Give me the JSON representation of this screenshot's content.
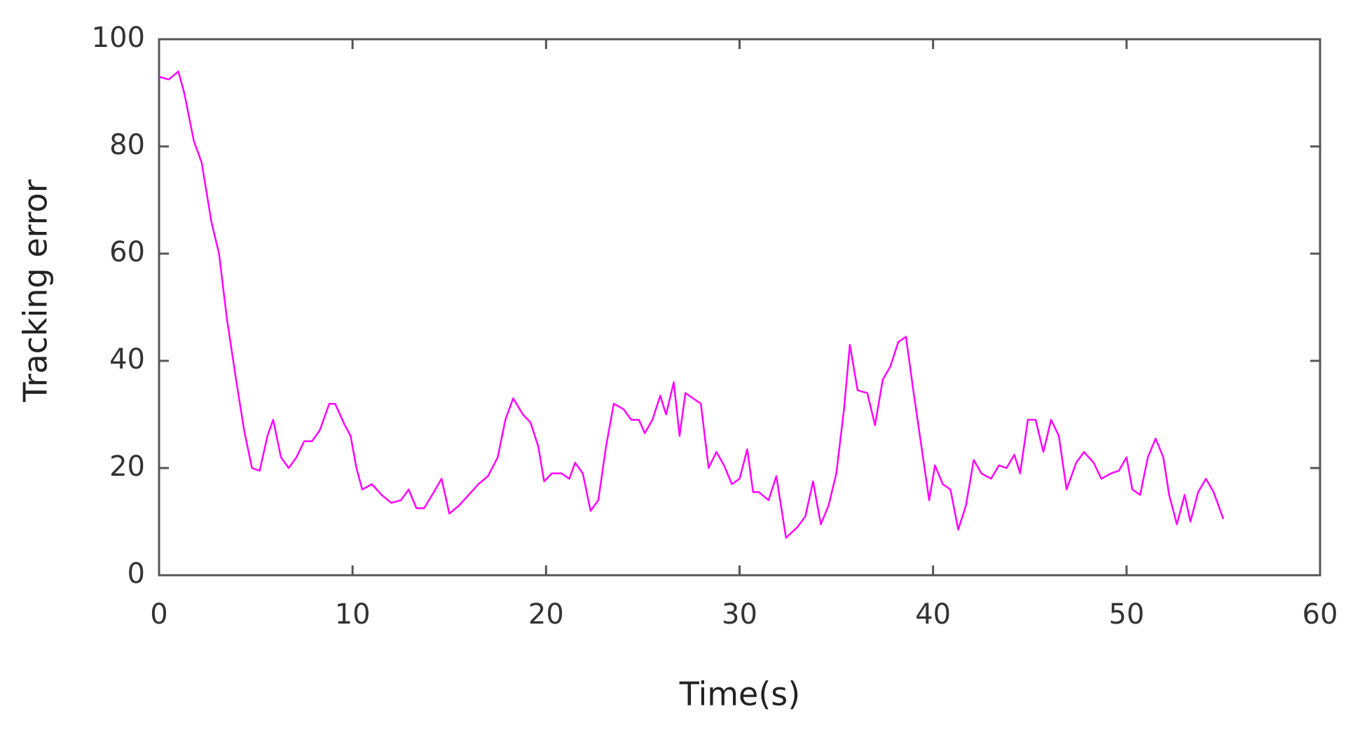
{
  "chart_data": {
    "type": "line",
    "xlabel": "Time(s)",
    "ylabel": "Tracking error",
    "x": [
      0,
      0.5,
      1,
      1.3,
      1.8,
      2.2,
      2.7,
      3.1,
      3.5,
      4,
      4.4,
      4.8,
      5.2,
      5.6,
      5.9,
      6.3,
      6.7,
      7.1,
      7.5,
      7.9,
      8.3,
      8.8,
      9.1,
      9.6,
      9.9,
      10.2,
      10.5,
      11,
      11.5,
      12,
      12.5,
      12.9,
      13.3,
      13.7,
      14.2,
      14.6,
      15,
      15.5,
      16,
      16.5,
      17,
      17.5,
      17.9,
      18.3,
      18.8,
      19.2,
      19.6,
      19.9,
      20.3,
      20.8,
      21.2,
      21.5,
      21.9,
      22.3,
      22.7,
      23.1,
      23.5,
      24,
      24.4,
      24.8,
      25.1,
      25.5,
      25.9,
      26.2,
      26.6,
      26.9,
      27.2,
      27.6,
      28,
      28.4,
      28.8,
      29.2,
      29.6,
      30,
      30.4,
      30.7,
      31,
      31.5,
      31.9,
      32.4,
      33,
      33.4,
      33.8,
      34.2,
      34.6,
      35,
      35.4,
      35.7,
      36.1,
      36.6,
      37,
      37.4,
      37.8,
      38.2,
      38.6,
      39,
      39.4,
      39.8,
      40.1,
      40.5,
      40.9,
      41.3,
      41.7,
      42.1,
      42.5,
      43,
      43.4,
      43.8,
      44.2,
      44.5,
      44.9,
      45.3,
      45.7,
      46.1,
      46.5,
      46.9,
      47.4,
      47.8,
      48.3,
      48.7,
      49.2,
      49.6,
      50,
      50.3,
      50.7,
      51.1,
      51.5,
      51.9,
      52.2,
      52.6,
      53,
      53.3,
      53.7,
      54.1,
      54.5,
      55
    ],
    "series": [
      {
        "color": "#ff00ff",
        "values": [
          93,
          92.5,
          94,
          90,
          81,
          77,
          66,
          60,
          48,
          36,
          27,
          20,
          19.5,
          26,
          29,
          22,
          20,
          22,
          25,
          25,
          27,
          32,
          32,
          28,
          26,
          20,
          16,
          17,
          15,
          13.5,
          14,
          16,
          12.5,
          12.5,
          15.5,
          18,
          11.5,
          13,
          15,
          17,
          18.5,
          22,
          29,
          33,
          30,
          28.5,
          24,
          17.5,
          19,
          19,
          18,
          21,
          19,
          12,
          14,
          24,
          32,
          31,
          29,
          29,
          26.5,
          29,
          33.5,
          30,
          36,
          26,
          34,
          33,
          32,
          20,
          23,
          20.5,
          17,
          18,
          23.5,
          15.5,
          15.5,
          14,
          18.5,
          7,
          9,
          11,
          17.5,
          9.5,
          13,
          19,
          31,
          43,
          34.5,
          34,
          28,
          36.5,
          39,
          43.5,
          44.5,
          34,
          24,
          14,
          20.5,
          17,
          16,
          8.5,
          13,
          21.5,
          19,
          18,
          20.5,
          20,
          22.5,
          19,
          29,
          29,
          23,
          29,
          26,
          16,
          21,
          23,
          21,
          18,
          19,
          19.5,
          22,
          16,
          15,
          22,
          25.5,
          22,
          15,
          9.5,
          15,
          10,
          15.5,
          18,
          15.5,
          10.5
        ]
      }
    ],
    "xlim": [
      0,
      60
    ],
    "xticks": [
      0,
      10,
      20,
      30,
      40,
      50,
      60
    ],
    "ylim": [
      0,
      100
    ],
    "yticks": [
      0,
      20,
      40,
      60,
      80,
      100
    ],
    "grid": false
  }
}
